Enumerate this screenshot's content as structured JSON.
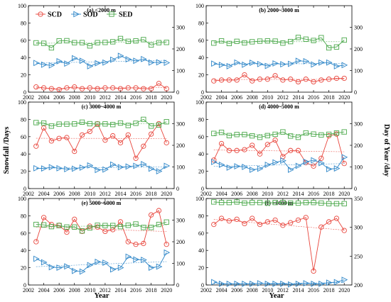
{
  "figure": {
    "ylabel_left": "Snowfall /Days",
    "ylabel_right": "Day of Year /day",
    "xlabel": "Year"
  },
  "legend": [
    {
      "name": "SCD",
      "color": "#e8453c",
      "marker": "circle"
    },
    {
      "name": "SOD",
      "color": "#2e86c8",
      "marker": "triangle-right"
    },
    {
      "name": "SED",
      "color": "#4aa84a",
      "marker": "square"
    }
  ],
  "colors": {
    "SCD": "#e8453c",
    "SOD": "#2e86c8",
    "SED": "#4aa84a"
  },
  "chart_data": [
    {
      "type": "line",
      "title": "(a) <2000 m",
      "x": [
        2003,
        2004,
        2005,
        2006,
        2007,
        2008,
        2009,
        2010,
        2011,
        2012,
        2013,
        2014,
        2015,
        2016,
        2017,
        2018,
        2019,
        2020
      ],
      "xlim": [
        2002,
        2021
      ],
      "xticks": [
        2002,
        2004,
        2006,
        2008,
        2010,
        2012,
        2014,
        2016,
        2018,
        2020
      ],
      "ylim_left": [
        0,
        100
      ],
      "yticks_left": [
        0,
        20,
        40,
        60,
        80,
        100
      ],
      "ylim_right": [
        0,
        400
      ],
      "yticks_right": [
        0,
        100,
        200,
        300
      ],
      "series": [
        {
          "name": "SCD",
          "axis": "left",
          "values": [
            6,
            5,
            4,
            3,
            5,
            6,
            4,
            5,
            4,
            5,
            5,
            4,
            5,
            5,
            4,
            4,
            10,
            4
          ]
        },
        {
          "name": "SOD",
          "axis": "right",
          "values": [
            135,
            127,
            124,
            143,
            132,
            157,
            145,
            120,
            134,
            137,
            150,
            168,
            152,
            145,
            153,
            137,
            138,
            136
          ]
        },
        {
          "name": "SED",
          "axis": "right",
          "values": [
            228,
            226,
            205,
            237,
            238,
            229,
            229,
            214,
            229,
            230,
            233,
            248,
            235,
            237,
            243,
            218,
            229,
            230
          ]
        }
      ]
    },
    {
      "type": "line",
      "title": "(b) 2000~3000 m",
      "x": [
        2003,
        2004,
        2005,
        2006,
        2007,
        2008,
        2009,
        2010,
        2011,
        2012,
        2013,
        2014,
        2015,
        2016,
        2017,
        2018,
        2019,
        2020
      ],
      "xlim": [
        2002,
        2021
      ],
      "xticks": [
        2002,
        2004,
        2006,
        2008,
        2010,
        2012,
        2014,
        2016,
        2018,
        2020
      ],
      "ylim_left": [
        0,
        100
      ],
      "yticks_left": [
        0,
        20,
        40,
        60,
        80,
        100
      ],
      "ylim_right": [
        0,
        400
      ],
      "yticks_right": [
        0,
        100,
        200,
        300
      ],
      "series": [
        {
          "name": "SCD",
          "axis": "left",
          "values": [
            13,
            14,
            14,
            14,
            20,
            13,
            15,
            15,
            19,
            14,
            15,
            12,
            15,
            12,
            14,
            15,
            16,
            16
          ]
        },
        {
          "name": "SOD",
          "axis": "right",
          "values": [
            132,
            126,
            120,
            137,
            127,
            136,
            130,
            121,
            133,
            129,
            131,
            145,
            143,
            128,
            137,
            137,
            120,
            125
          ]
        },
        {
          "name": "SED",
          "axis": "right",
          "values": [
            227,
            237,
            225,
            235,
            228,
            233,
            236,
            237,
            236,
            227,
            234,
            253,
            245,
            239,
            252,
            205,
            209,
            241
          ]
        }
      ]
    },
    {
      "type": "line",
      "title": "(c) 3000~4000 m",
      "x": [
        2003,
        2004,
        2005,
        2006,
        2007,
        2008,
        2009,
        2010,
        2011,
        2012,
        2013,
        2014,
        2015,
        2016,
        2017,
        2018,
        2019,
        2020
      ],
      "xlim": [
        2002,
        2021
      ],
      "xticks": [
        2002,
        2004,
        2006,
        2008,
        2010,
        2012,
        2014,
        2016,
        2018,
        2020
      ],
      "ylim_left": [
        0,
        100
      ],
      "yticks_left": [
        0,
        20,
        40,
        60,
        80,
        100
      ],
      "ylim_right": [
        0,
        400
      ],
      "yticks_right": [
        0,
        100,
        200,
        300
      ],
      "series": [
        {
          "name": "SCD",
          "axis": "left",
          "values": [
            49,
            70,
            55,
            58,
            59,
            43,
            62,
            66,
            75,
            56,
            61,
            53,
            62,
            35,
            49,
            63,
            75,
            53
          ]
        },
        {
          "name": "SOD",
          "axis": "right",
          "values": [
            94,
            93,
            99,
            94,
            90,
            92,
            97,
            107,
            86,
            88,
            111,
            99,
            102,
            105,
            113,
            92,
            80,
            105
          ]
        },
        {
          "name": "SED",
          "axis": "right",
          "values": [
            305,
            303,
            289,
            298,
            298,
            299,
            307,
            300,
            298,
            299,
            296,
            303,
            292,
            302,
            320,
            289,
            294,
            309
          ]
        }
      ]
    },
    {
      "type": "line",
      "title": "(d) 4000~5000 m",
      "x": [
        2003,
        2004,
        2005,
        2006,
        2007,
        2008,
        2009,
        2010,
        2011,
        2012,
        2013,
        2014,
        2015,
        2016,
        2017,
        2018,
        2019,
        2020
      ],
      "xlim": [
        2002,
        2021
      ],
      "xticks": [
        2002,
        2004,
        2006,
        2008,
        2010,
        2012,
        2014,
        2016,
        2018,
        2020
      ],
      "ylim_left": [
        0,
        100
      ],
      "yticks_left": [
        0,
        20,
        40,
        60,
        80,
        100
      ],
      "ylim_right": [
        0,
        400
      ],
      "yticks_right": [
        0,
        100,
        200,
        300
      ],
      "series": [
        {
          "name": "SCD",
          "axis": "left",
          "values": [
            33,
            52,
            44,
            44,
            45,
            50,
            40,
            51,
            56,
            37,
            44,
            44,
            30,
            26,
            35,
            61,
            63,
            29
          ]
        },
        {
          "name": "SOD",
          "axis": "right",
          "values": [
            123,
            110,
            97,
            103,
            100,
            87,
            92,
            110,
            121,
            129,
            87,
            105,
            124,
            131,
            118,
            90,
            93,
            145
          ]
        },
        {
          "name": "SED",
          "axis": "right",
          "values": [
            255,
            260,
            245,
            250,
            250,
            244,
            237,
            245,
            251,
            262,
            243,
            237,
            257,
            252,
            248,
            251,
            257,
            262
          ]
        }
      ]
    },
    {
      "type": "line",
      "title": "(e) 5000~6000 m",
      "x": [
        2003,
        2004,
        2005,
        2006,
        2007,
        2008,
        2009,
        2010,
        2011,
        2012,
        2013,
        2014,
        2015,
        2016,
        2017,
        2018,
        2019,
        2020
      ],
      "xlim": [
        2002,
        2021
      ],
      "xticks": [
        2002,
        2004,
        2006,
        2008,
        2010,
        2012,
        2014,
        2016,
        2018,
        2020
      ],
      "ylim_left": [
        0,
        100
      ],
      "yticks_left": [
        0,
        20,
        40,
        60,
        80,
        100
      ],
      "ylim_right": [
        0,
        400
      ],
      "yticks_right": [
        0,
        100,
        200,
        300
      ],
      "series": [
        {
          "name": "SCD",
          "axis": "left",
          "values": [
            50,
            78,
            70,
            69,
            61,
            76,
            62,
            68,
            67,
            62,
            64,
            73,
            50,
            47,
            48,
            81,
            86,
            47
          ]
        },
        {
          "name": "SOD",
          "axis": "right",
          "values": [
            121,
            105,
            82,
            80,
            86,
            65,
            62,
            92,
            107,
            103,
            72,
            80,
            131,
            118,
            116,
            80,
            85,
            150
          ]
        },
        {
          "name": "SED",
          "axis": "right",
          "values": [
            280,
            278,
            270,
            275,
            268,
            268,
            250,
            264,
            276,
            275,
            275,
            270,
            276,
            282,
            266,
            266,
            280,
            291
          ]
        }
      ]
    },
    {
      "type": "line",
      "title": "(f) >6000 m",
      "x": [
        2003,
        2004,
        2005,
        2006,
        2007,
        2008,
        2009,
        2010,
        2011,
        2012,
        2013,
        2014,
        2015,
        2016,
        2017,
        2018,
        2019,
        2020
      ],
      "xlim": [
        2002,
        2021
      ],
      "xticks": [
        2002,
        2004,
        2006,
        2008,
        2010,
        2012,
        2014,
        2016,
        2018,
        2020
      ],
      "ylim_left": [
        0,
        100
      ],
      "yticks_left": [
        0,
        20,
        40,
        60,
        80,
        100
      ],
      "ylim_right": [
        200,
        350
      ],
      "yticks_right": [
        200,
        250,
        300,
        350
      ],
      "series": [
        {
          "name": "SCD",
          "axis": "left",
          "values": [
            70,
            77,
            74,
            76,
            71,
            77,
            70,
            73,
            75,
            69,
            72,
            75,
            78,
            16,
            67,
            73,
            77,
            63
          ]
        },
        {
          "name": "SOD",
          "axis": "right",
          "values": [
            205,
            202,
            202,
            202,
            202,
            202,
            203,
            202,
            202,
            202,
            201,
            202,
            203,
            202,
            202,
            204,
            205,
            209
          ]
        },
        {
          "name": "SED",
          "axis": "right",
          "values": [
            344,
            343,
            343,
            344,
            342,
            343,
            343,
            342,
            343,
            343,
            342,
            342,
            343,
            343,
            342,
            341,
            341,
            341
          ]
        }
      ]
    }
  ]
}
